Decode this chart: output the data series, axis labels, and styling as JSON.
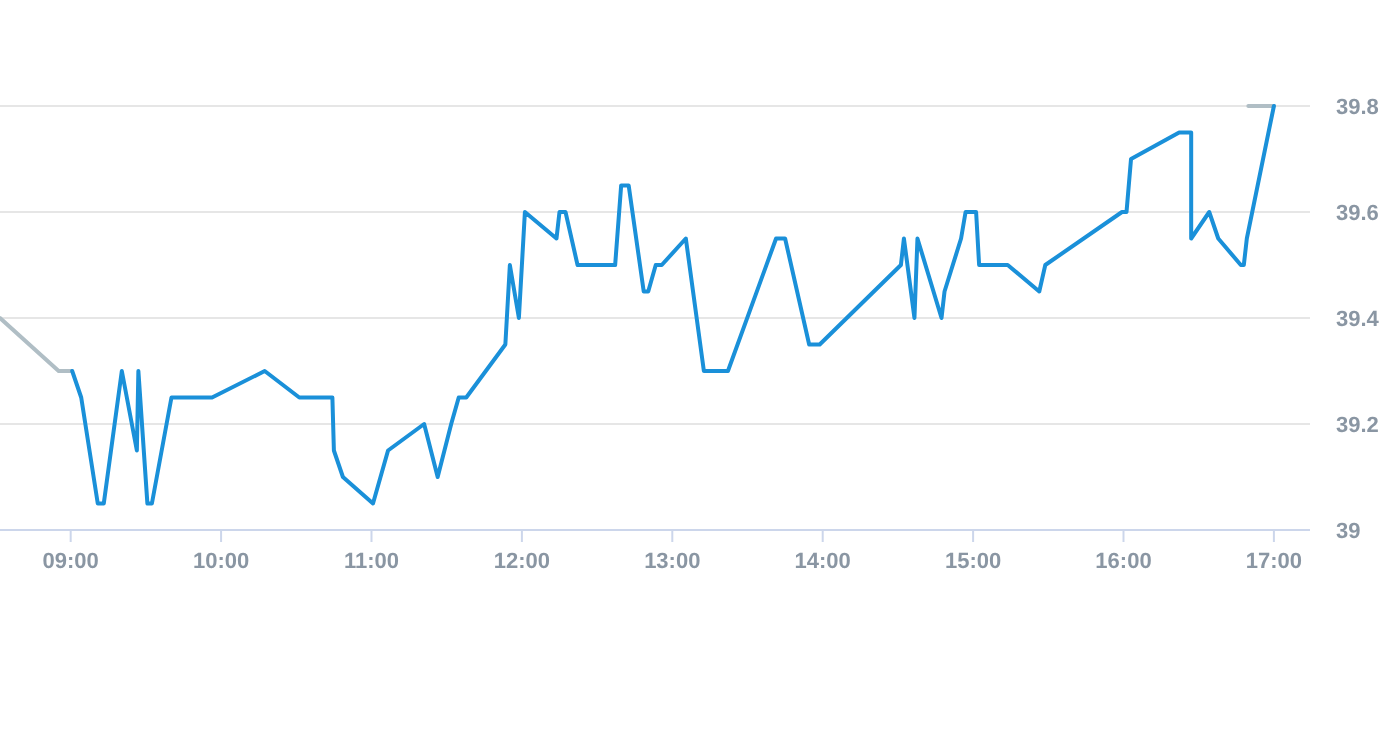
{
  "chart_data": {
    "type": "line",
    "xlim": [
      8.53,
      17.24
    ],
    "ylim": [
      39,
      39.8
    ],
    "xticks": [
      {
        "value": 9,
        "label": "09:00"
      },
      {
        "value": 10,
        "label": "10:00"
      },
      {
        "value": 11,
        "label": "11:00"
      },
      {
        "value": 12,
        "label": "12:00"
      },
      {
        "value": 13,
        "label": "13:00"
      },
      {
        "value": 14,
        "label": "14:00"
      },
      {
        "value": 15,
        "label": "15:00"
      },
      {
        "value": 16,
        "label": "16:00"
      },
      {
        "value": 17,
        "label": "17:00"
      }
    ],
    "yticks": [
      39,
      39.2,
      39.4,
      39.6,
      39.8
    ],
    "grid": "y",
    "marker": "none",
    "line_style": "solid",
    "series": [
      {
        "color": "#b0bec5",
        "x": [
          8.53,
          8.92,
          9.0,
          12,
          16.83,
          17.0
        ],
        "values": [
          39.4,
          39.3,
          39.3,
          null,
          39.8,
          39.8
        ]
      },
      {
        "color": "#1a90d9",
        "x": [
          9.01,
          9.07,
          9.18,
          9.22,
          9.34,
          9.44,
          9.45,
          9.51,
          9.54,
          9.67,
          9.94,
          10.29,
          10.52,
          10.74,
          10.75,
          10.81,
          11.01,
          11.11,
          11.35,
          11.44,
          11.53,
          11.58,
          11.63,
          11.89,
          11.92,
          11.98,
          12.02,
          12.23,
          12.25,
          12.29,
          12.37,
          12.62,
          12.66,
          12.71,
          12.81,
          12.84,
          12.89,
          12.93,
          13.09,
          13.21,
          13.37,
          13.69,
          13.75,
          13.91,
          13.98,
          14.52,
          14.54,
          14.61,
          14.63,
          14.79,
          14.81,
          14.92,
          14.95,
          15.02,
          15.04,
          15.23,
          15.44,
          15.48,
          15.99,
          16.02,
          16.05,
          16.37,
          16.45,
          16.45,
          16.57,
          16.63,
          16.78,
          16.8,
          16.82,
          17.0
        ],
        "values": [
          39.3,
          39.25,
          39.05,
          39.05,
          39.3,
          39.15,
          39.3,
          39.05,
          39.05,
          39.25,
          39.25,
          39.3,
          39.25,
          39.25,
          39.15,
          39.1,
          39.05,
          39.15,
          39.2,
          39.1,
          39.2,
          39.25,
          39.25,
          39.35,
          39.5,
          39.4,
          39.6,
          39.55,
          39.6,
          39.6,
          39.5,
          39.5,
          39.65,
          39.65,
          39.45,
          39.45,
          39.5,
          39.5,
          39.55,
          39.3,
          39.3,
          39.55,
          39.55,
          39.35,
          39.35,
          39.5,
          39.55,
          39.4,
          39.55,
          39.4,
          39.45,
          39.55,
          39.6,
          39.6,
          39.5,
          39.5,
          39.45,
          39.5,
          39.6,
          39.6,
          39.7,
          39.75,
          39.75,
          39.55,
          39.6,
          39.55,
          39.5,
          39.5,
          39.55,
          39.8
        ]
      }
    ]
  }
}
